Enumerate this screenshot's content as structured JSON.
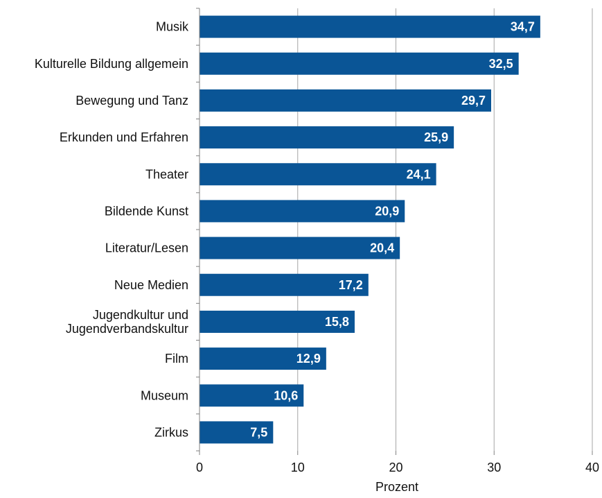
{
  "chart_data": {
    "type": "bar",
    "orientation": "horizontal",
    "categories": [
      "Musik",
      "Kulturelle Bildung allgemein",
      "Bewegung und Tanz",
      "Erkunden und Erfahren",
      "Theater",
      "Bildende Kunst",
      "Literatur/Lesen",
      "Neue Medien",
      [
        "Jugendkultur und",
        "Jugendverbandskultur"
      ],
      "Film",
      "Museum",
      "Zirkus"
    ],
    "values": [
      34.7,
      32.5,
      29.7,
      25.9,
      24.1,
      20.9,
      20.4,
      17.2,
      15.8,
      12.9,
      10.6,
      7.5
    ],
    "value_labels": [
      "34,7",
      "32,5",
      "29,7",
      "25,9",
      "24,1",
      "20,9",
      "20,4",
      "17,2",
      "15,8",
      "12,9",
      "10,6",
      "7,5"
    ],
    "xlabel": "Prozent",
    "ylabel": "",
    "xlim": [
      0,
      40
    ],
    "xticks": [
      0,
      10,
      20,
      30,
      40
    ],
    "grid": "vertical",
    "bar_color": "#0a5596",
    "grid_color": "#a6a6a6"
  }
}
